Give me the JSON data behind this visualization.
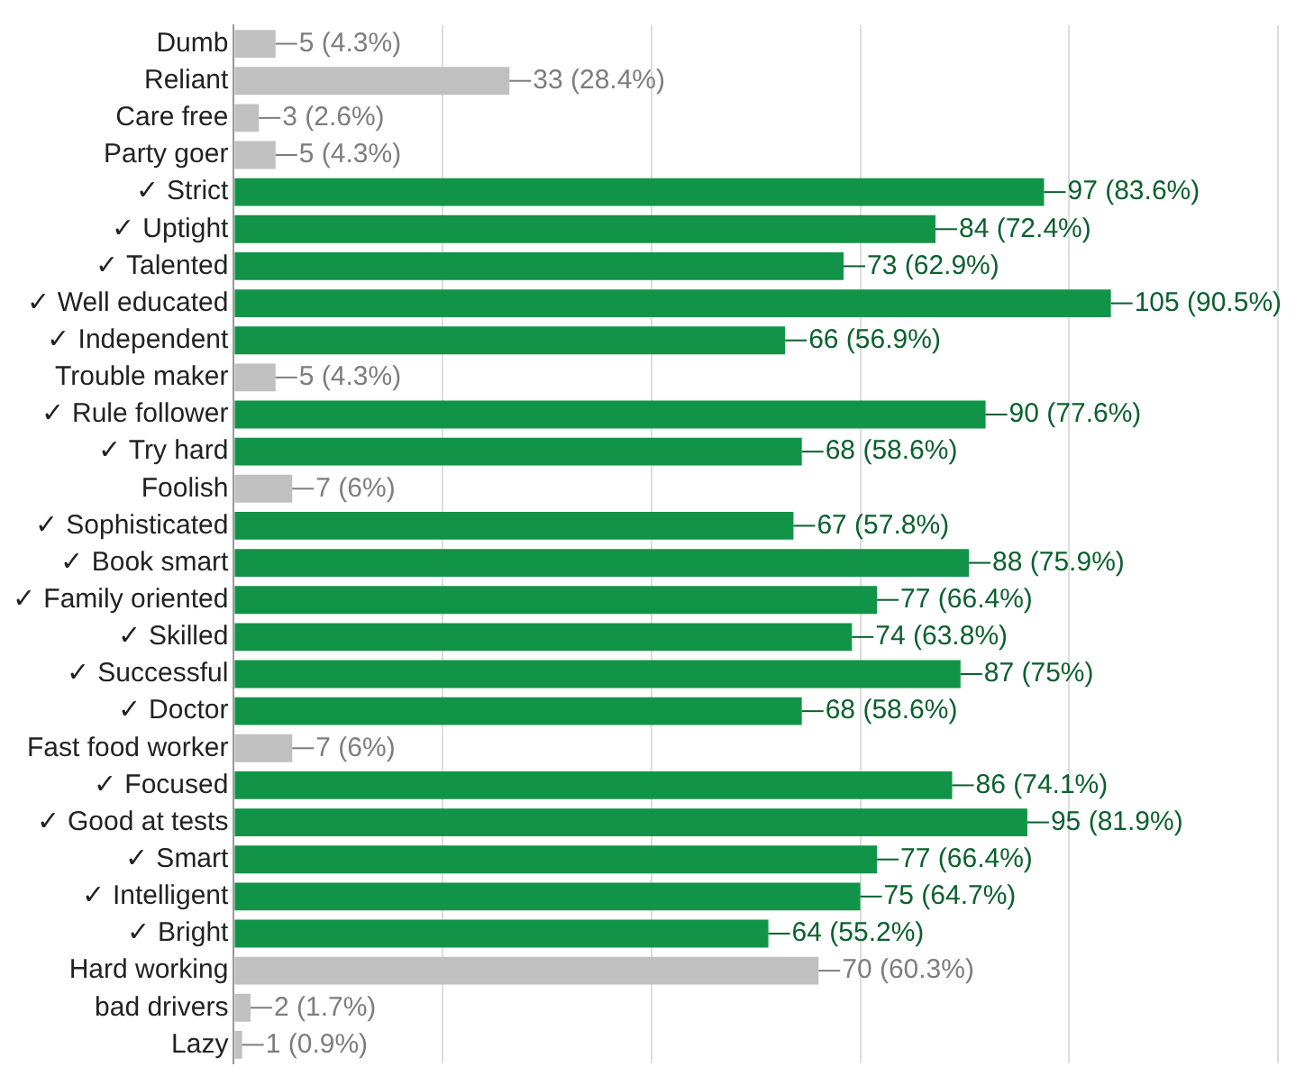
{
  "chart_data": {
    "type": "bar",
    "orientation": "horizontal",
    "categories": [
      "Dumb",
      "Reliant",
      "Care free",
      "Party goer",
      "✓ Strict",
      "✓ Uptight",
      "✓ Talented",
      "✓ Well educated",
      "✓ Independent",
      "Trouble maker",
      "✓ Rule follower",
      "✓ Try hard",
      "Foolish",
      "✓ Sophisticated",
      "✓ Book smart",
      "✓ Family oriented",
      "✓ Skilled",
      "✓ Successful",
      "✓ Doctor",
      "Fast food worker",
      "✓ Focused",
      "✓ Good at tests",
      "✓ Smart",
      "✓ Intelligent",
      "✓ Bright",
      "Hard working",
      "bad drivers",
      "Lazy"
    ],
    "values": [
      5,
      33,
      3,
      5,
      97,
      84,
      73,
      105,
      66,
      5,
      90,
      68,
      7,
      67,
      88,
      77,
      74,
      87,
      68,
      7,
      86,
      95,
      77,
      75,
      64,
      70,
      2,
      1
    ],
    "colors": [
      "#c0c0c0",
      "#c0c0c0",
      "#c0c0c0",
      "#c0c0c0",
      "#119447",
      "#119447",
      "#119447",
      "#119447",
      "#119447",
      "#c0c0c0",
      "#119447",
      "#119447",
      "#c0c0c0",
      "#119447",
      "#119447",
      "#119447",
      "#119447",
      "#119447",
      "#119447",
      "#c0c0c0",
      "#119447",
      "#119447",
      "#119447",
      "#119447",
      "#119447",
      "#c0c0c0",
      "#c0c0c0",
      "#c0c0c0"
    ],
    "value_labels": [
      "5 (4.3%)",
      "33 (28.4%)",
      "3 (2.6%)",
      "5 (4.3%)",
      "97 (83.6%)",
      "84 (72.4%)",
      "73 (62.9%)",
      "105 (90.5%)",
      "66 (56.9%)",
      "5 (4.3%)",
      "90 (77.6%)",
      "68 (58.6%)",
      "7 (6%)",
      "67 (57.8%)",
      "88 (75.9%)",
      "77 (66.4%)",
      "74 (63.8%)",
      "87 (75%)",
      "68 (58.6%)",
      "7 (6%)",
      "86 (74.1%)",
      "95 (81.9%)",
      "77 (66.4%)",
      "75 (64.7%)",
      "64 (55.2%)",
      "70 (60.3%)",
      "2 (1.7%)",
      "1 (0.9%)"
    ],
    "xlim": [
      0,
      125
    ],
    "xticks": [
      {
        "value": 0,
        "label": null
      },
      {
        "value": 25,
        "label": null
      },
      {
        "value": 50,
        "label": null
      },
      {
        "value": 75,
        "label": null
      },
      {
        "value": 100,
        "label": null
      },
      {
        "value": 125,
        "label": null
      }
    ],
    "tick_labels": "y",
    "grid": "x",
    "legend": false
  }
}
